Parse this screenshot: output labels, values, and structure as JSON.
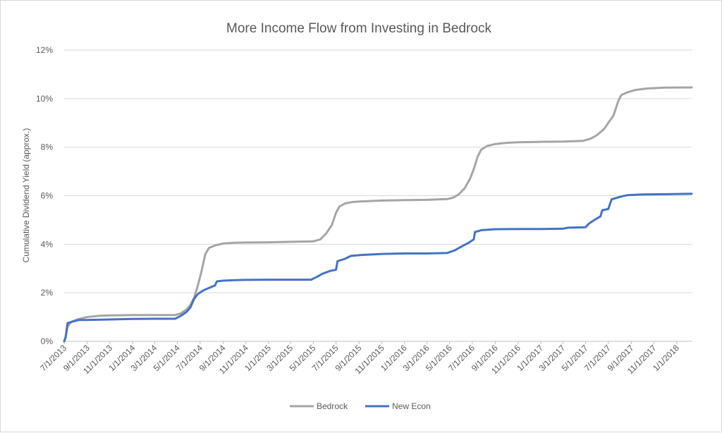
{
  "chart_data": {
    "type": "line",
    "title": "More Income Flow from Investing in Bedrock",
    "ylabel": "Cumulative Dividend Yield  (approx.)",
    "xlabel": "",
    "ylim": [
      0,
      12
    ],
    "xlim": [
      "2013-07-01",
      "2018-02-10"
    ],
    "grid": "horizontal",
    "legend": "bottom",
    "yticks": [
      "0%",
      "2%",
      "4%",
      "6%",
      "8%",
      "10%",
      "12%"
    ],
    "xticks": [
      "7/1/2013",
      "9/1/2013",
      "11/1/2013",
      "1/1/2014",
      "3/1/2014",
      "5/1/2014",
      "7/1/2014",
      "9/1/2014",
      "11/1/2014",
      "1/1/2015",
      "3/1/2015",
      "5/1/2015",
      "7/1/2015",
      "9/1/2015",
      "11/1/2015",
      "1/1/2016",
      "3/1/2016",
      "5/1/2016",
      "7/1/2016",
      "9/1/2016",
      "11/1/2016",
      "1/1/2017",
      "3/1/2017",
      "5/1/2017",
      "7/1/2017",
      "9/1/2017",
      "11/1/2017",
      "1/1/2018"
    ],
    "series": [
      {
        "name": "Bedrock",
        "color": "#a5a5a5",
        "points": [
          [
            "2013-07-01",
            0.0
          ],
          [
            "2013-07-05",
            0.2
          ],
          [
            "2013-07-10",
            0.6
          ],
          [
            "2013-07-20",
            0.8
          ],
          [
            "2013-08-05",
            0.9
          ],
          [
            "2013-09-01",
            1.0
          ],
          [
            "2013-10-01",
            1.05
          ],
          [
            "2013-11-01",
            1.07
          ],
          [
            "2014-01-01",
            1.08
          ],
          [
            "2014-03-01",
            1.08
          ],
          [
            "2014-04-25",
            1.08
          ],
          [
            "2014-05-10",
            1.15
          ],
          [
            "2014-05-25",
            1.3
          ],
          [
            "2014-06-05",
            1.5
          ],
          [
            "2014-06-15",
            1.8
          ],
          [
            "2014-06-25",
            2.3
          ],
          [
            "2014-07-05",
            2.9
          ],
          [
            "2014-07-15",
            3.6
          ],
          [
            "2014-07-25",
            3.85
          ],
          [
            "2014-08-10",
            3.95
          ],
          [
            "2014-09-01",
            4.03
          ],
          [
            "2014-10-01",
            4.06
          ],
          [
            "2014-11-01",
            4.07
          ],
          [
            "2015-01-01",
            4.08
          ],
          [
            "2015-03-01",
            4.1
          ],
          [
            "2015-05-01",
            4.12
          ],
          [
            "2015-05-20",
            4.2
          ],
          [
            "2015-06-05",
            4.45
          ],
          [
            "2015-06-20",
            4.8
          ],
          [
            "2015-07-01",
            5.3
          ],
          [
            "2015-07-10",
            5.55
          ],
          [
            "2015-07-25",
            5.68
          ],
          [
            "2015-08-15",
            5.74
          ],
          [
            "2015-09-01",
            5.76
          ],
          [
            "2015-11-01",
            5.8
          ],
          [
            "2016-01-01",
            5.82
          ],
          [
            "2016-03-01",
            5.83
          ],
          [
            "2016-04-25",
            5.86
          ],
          [
            "2016-05-10",
            5.92
          ],
          [
            "2016-05-25",
            6.05
          ],
          [
            "2016-06-10",
            6.3
          ],
          [
            "2016-06-25",
            6.7
          ],
          [
            "2016-07-05",
            7.1
          ],
          [
            "2016-07-15",
            7.6
          ],
          [
            "2016-07-25",
            7.9
          ],
          [
            "2016-08-10",
            8.05
          ],
          [
            "2016-09-01",
            8.13
          ],
          [
            "2016-10-01",
            8.18
          ],
          [
            "2016-11-01",
            8.2
          ],
          [
            "2017-01-01",
            8.22
          ],
          [
            "2017-03-01",
            8.23
          ],
          [
            "2017-04-25",
            8.26
          ],
          [
            "2017-05-15",
            8.35
          ],
          [
            "2017-06-01",
            8.5
          ],
          [
            "2017-06-20",
            8.75
          ],
          [
            "2017-07-01",
            9.0
          ],
          [
            "2017-07-15",
            9.3
          ],
          [
            "2017-07-28",
            9.9
          ],
          [
            "2017-08-05",
            10.15
          ],
          [
            "2017-08-20",
            10.25
          ],
          [
            "2017-09-10",
            10.35
          ],
          [
            "2017-10-15",
            10.42
          ],
          [
            "2017-12-01",
            10.45
          ],
          [
            "2018-02-10",
            10.46
          ]
        ]
      },
      {
        "name": "New Econ",
        "color": "#4472c4",
        "points": [
          [
            "2013-07-01",
            0.0
          ],
          [
            "2013-07-05",
            0.15
          ],
          [
            "2013-07-10",
            0.75
          ],
          [
            "2013-07-25",
            0.82
          ],
          [
            "2013-08-10",
            0.88
          ],
          [
            "2013-09-01",
            0.88
          ],
          [
            "2013-11-01",
            0.9
          ],
          [
            "2014-01-01",
            0.92
          ],
          [
            "2014-03-01",
            0.93
          ],
          [
            "2014-04-25",
            0.93
          ],
          [
            "2014-05-10",
            1.05
          ],
          [
            "2014-05-25",
            1.2
          ],
          [
            "2014-06-05",
            1.4
          ],
          [
            "2014-06-15",
            1.75
          ],
          [
            "2014-06-25",
            1.95
          ],
          [
            "2014-07-10",
            2.1
          ],
          [
            "2014-07-25",
            2.2
          ],
          [
            "2014-08-10",
            2.3
          ],
          [
            "2014-08-15",
            2.47
          ],
          [
            "2014-09-01",
            2.5
          ],
          [
            "2014-10-01",
            2.52
          ],
          [
            "2014-11-01",
            2.53
          ],
          [
            "2015-01-01",
            2.54
          ],
          [
            "2015-03-01",
            2.54
          ],
          [
            "2015-04-25",
            2.54
          ],
          [
            "2015-05-10",
            2.65
          ],
          [
            "2015-05-25",
            2.78
          ],
          [
            "2015-06-15",
            2.9
          ],
          [
            "2015-07-01",
            2.95
          ],
          [
            "2015-07-05",
            3.3
          ],
          [
            "2015-07-25",
            3.4
          ],
          [
            "2015-08-10",
            3.52
          ],
          [
            "2015-09-01",
            3.55
          ],
          [
            "2015-11-01",
            3.6
          ],
          [
            "2016-01-01",
            3.62
          ],
          [
            "2016-03-01",
            3.62
          ],
          [
            "2016-04-25",
            3.64
          ],
          [
            "2016-05-15",
            3.75
          ],
          [
            "2016-06-01",
            3.9
          ],
          [
            "2016-06-20",
            4.05
          ],
          [
            "2016-07-05",
            4.2
          ],
          [
            "2016-07-08",
            4.5
          ],
          [
            "2016-07-25",
            4.58
          ],
          [
            "2016-09-01",
            4.62
          ],
          [
            "2016-11-01",
            4.63
          ],
          [
            "2017-01-01",
            4.63
          ],
          [
            "2017-03-01",
            4.64
          ],
          [
            "2017-03-15",
            4.68
          ],
          [
            "2017-05-01",
            4.7
          ],
          [
            "2017-05-10",
            4.85
          ],
          [
            "2017-05-25",
            5.0
          ],
          [
            "2017-06-10",
            5.15
          ],
          [
            "2017-06-15",
            5.4
          ],
          [
            "2017-07-01",
            5.45
          ],
          [
            "2017-07-10",
            5.85
          ],
          [
            "2017-08-01",
            5.95
          ],
          [
            "2017-08-20",
            6.02
          ],
          [
            "2017-10-01",
            6.05
          ],
          [
            "2017-12-01",
            6.06
          ],
          [
            "2018-02-10",
            6.08
          ]
        ]
      }
    ]
  }
}
